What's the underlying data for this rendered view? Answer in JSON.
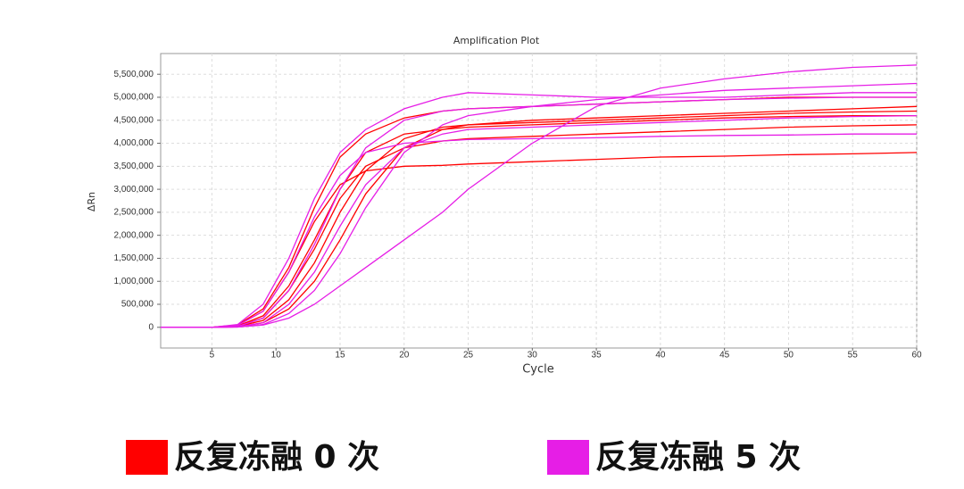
{
  "chart_data": {
    "type": "line",
    "title": "Amplification Plot",
    "x_label": "Cycle",
    "y_label": "ΔRn",
    "x": [
      1,
      5,
      7,
      9,
      11,
      13,
      15,
      17,
      20,
      23,
      25,
      30,
      35,
      40,
      45,
      50,
      55,
      60
    ],
    "xlim": [
      1,
      60
    ],
    "xticks": [
      5,
      10,
      15,
      20,
      25,
      30,
      35,
      40,
      45,
      50,
      55,
      60
    ],
    "ylim": [
      -450000,
      5950000
    ],
    "yticks": [
      0,
      {
        "value": 500000,
        "label": "500,000"
      },
      {
        "value": 1000000,
        "label": "1,000,000"
      },
      {
        "value": 1500000,
        "label": "1,500,000"
      },
      {
        "value": 2000000,
        "label": "2,000,000"
      },
      {
        "value": 2500000,
        "label": "2,500,000"
      },
      {
        "value": 3000000,
        "label": "3,000,000"
      },
      {
        "value": 3500000,
        "label": "3,500,000"
      },
      {
        "value": 4000000,
        "label": "4,000,000"
      },
      {
        "value": 4500000,
        "label": "4,500,000"
      },
      {
        "value": 5000000,
        "label": "5,000,000"
      },
      {
        "value": 5500000,
        "label": "5,500,000"
      }
    ],
    "grid": true,
    "legend": "bottom",
    "series": [
      {
        "name": "反复冻融 0 次",
        "color": "#ff0000",
        "curves": [
          [
            0,
            0,
            50000,
            400000,
            1300000,
            2600000,
            3700000,
            4200000,
            4550000,
            4700000,
            4750000,
            4800000,
            4850000,
            4900000,
            4950000,
            5000000,
            5000000,
            5000000
          ],
          [
            0,
            0,
            30000,
            250000,
            900000,
            1900000,
            3000000,
            3800000,
            4200000,
            4300000,
            4350000,
            4400000,
            4450000,
            4500000,
            4550000,
            4580000,
            4600000,
            4600000
          ],
          [
            0,
            0,
            40000,
            350000,
            1200000,
            2300000,
            3100000,
            3400000,
            3500000,
            3520000,
            3550000,
            3600000,
            3650000,
            3700000,
            3720000,
            3750000,
            3770000,
            3800000
          ],
          [
            0,
            0,
            20000,
            150000,
            600000,
            1400000,
            2500000,
            3400000,
            4100000,
            4350000,
            4400000,
            4450000,
            4500000,
            4550000,
            4600000,
            4650000,
            4680000,
            4700000
          ],
          [
            0,
            0,
            30000,
            200000,
            800000,
            1700000,
            2800000,
            3500000,
            3900000,
            4050000,
            4100000,
            4150000,
            4200000,
            4250000,
            4300000,
            4350000,
            4380000,
            4400000
          ],
          [
            0,
            0,
            10000,
            100000,
            400000,
            1000000,
            1900000,
            2900000,
            3900000,
            4300000,
            4400000,
            4500000,
            4550000,
            4600000,
            4650000,
            4700000,
            4750000,
            4800000
          ]
        ]
      },
      {
        "name": "反复冻融 5 次",
        "color": "#e61ee6",
        "curves": [
          [
            0,
            0,
            5000,
            50000,
            200000,
            500000,
            900000,
            1300000,
            1900000,
            2500000,
            3000000,
            4000000,
            4800000,
            5200000,
            5400000,
            5550000,
            5650000,
            5700000
          ],
          [
            0,
            0,
            60000,
            500000,
            1500000,
            2800000,
            3800000,
            4300000,
            4750000,
            5000000,
            5100000,
            5050000,
            5000000,
            5000000,
            5000000,
            5050000,
            5100000,
            5100000
          ],
          [
            0,
            0,
            40000,
            350000,
            1200000,
            2400000,
            3300000,
            3800000,
            4000000,
            4050000,
            4080000,
            4100000,
            4120000,
            4150000,
            4170000,
            4180000,
            4200000,
            4200000
          ],
          [
            0,
            0,
            5000,
            60000,
            300000,
            800000,
            1600000,
            2600000,
            3800000,
            4400000,
            4600000,
            4800000,
            4950000,
            5050000,
            5150000,
            5200000,
            5250000,
            5300000
          ],
          [
            0,
            0,
            10000,
            100000,
            500000,
            1200000,
            2200000,
            3100000,
            3900000,
            4200000,
            4300000,
            4350000,
            4400000,
            4450000,
            4500000,
            4550000,
            4580000,
            4600000
          ],
          [
            0,
            0,
            20000,
            200000,
            800000,
            1800000,
            3000000,
            3900000,
            4500000,
            4700000,
            4750000,
            4800000,
            4850000,
            4900000,
            4950000,
            4980000,
            5000000,
            5000000
          ]
        ]
      }
    ]
  }
}
